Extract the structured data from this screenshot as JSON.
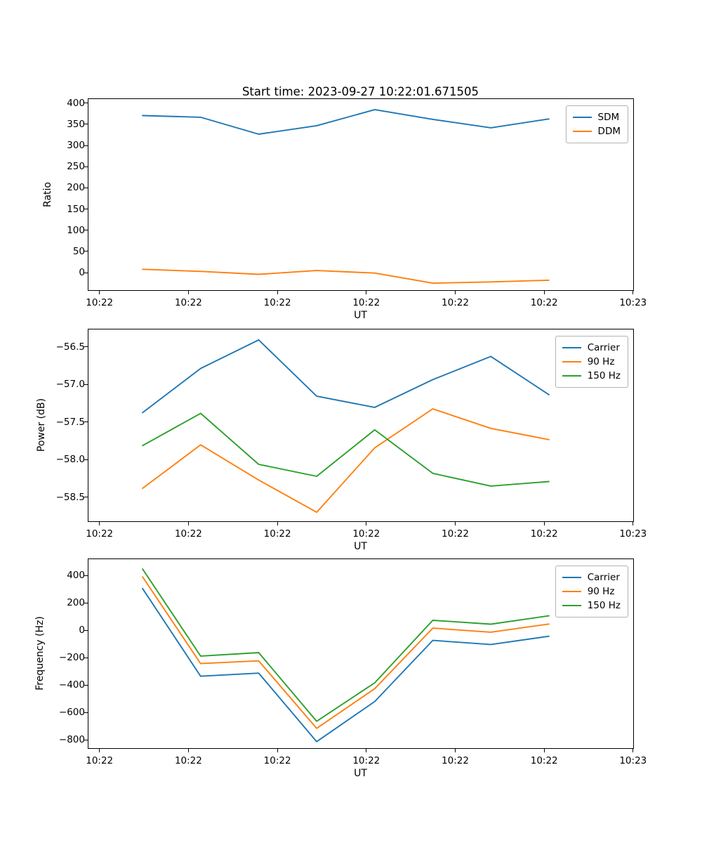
{
  "figure": {
    "title": "Start time: 2023-09-27 10:22:01.671505",
    "background": "#ffffff"
  },
  "chart_data": [
    {
      "name": "ratio",
      "type": "line",
      "xlabel": "UT",
      "ylabel": "Ratio",
      "x_tick_labels": [
        "10:22",
        "10:22",
        "10:22",
        "10:22",
        "10:22",
        "10:22",
        "10:23"
      ],
      "y_ticks": [
        {
          "value": 0,
          "label": "0"
        },
        {
          "value": 50,
          "label": "50"
        },
        {
          "value": 100,
          "label": "100"
        },
        {
          "value": 150,
          "label": "150"
        },
        {
          "value": 200,
          "label": "200"
        },
        {
          "value": 250,
          "label": "250"
        },
        {
          "value": 300,
          "label": "300"
        },
        {
          "value": 350,
          "label": "350"
        },
        {
          "value": 400,
          "label": "400"
        }
      ],
      "ylim": [
        -41.4,
        411.1
      ],
      "grid": false,
      "legend_position": "upper right",
      "series": [
        {
          "name": "SDM",
          "color": "#1f77b4",
          "values": [
            372,
            368,
            328,
            348,
            386,
            363,
            343,
            364
          ]
        },
        {
          "name": "DDM",
          "color": "#ff7f0e",
          "values": [
            8,
            3,
            -4,
            5,
            -1,
            -25,
            -22,
            -18
          ]
        }
      ]
    },
    {
      "name": "power",
      "type": "line",
      "xlabel": "UT",
      "ylabel": "Power (dB)",
      "x_tick_labels": [
        "10:22",
        "10:22",
        "10:22",
        "10:22",
        "10:22",
        "10:22",
        "10:23"
      ],
      "y_ticks": [
        {
          "value": -58.5,
          "label": "−58.5"
        },
        {
          "value": -58.0,
          "label": "−58.0"
        },
        {
          "value": -57.5,
          "label": "−57.5"
        },
        {
          "value": -57.0,
          "label": "−57.0"
        },
        {
          "value": -56.5,
          "label": "−56.5"
        }
      ],
      "ylim": [
        -58.82,
        -56.26
      ],
      "grid": false,
      "legend_position": "upper right",
      "series": [
        {
          "name": "Carrier",
          "color": "#1f77b4",
          "values": [
            -57.37,
            -56.78,
            -56.4,
            -57.15,
            -57.3,
            -56.93,
            -56.62,
            -57.13
          ]
        },
        {
          "name": "90 Hz",
          "color": "#ff7f0e",
          "values": [
            -58.38,
            -57.8,
            -58.27,
            -58.7,
            -57.84,
            -57.32,
            -57.58,
            -57.73
          ]
        },
        {
          "name": "150 Hz",
          "color": "#2ca02c",
          "values": [
            -57.81,
            -57.38,
            -58.06,
            -58.22,
            -57.6,
            -58.18,
            -58.35,
            -58.29
          ]
        }
      ]
    },
    {
      "name": "frequency",
      "type": "line",
      "xlabel": "UT",
      "ylabel": "Frequency (Hz)",
      "x_tick_labels": [
        "10:22",
        "10:22",
        "10:22",
        "10:22",
        "10:22",
        "10:22",
        "10:23"
      ],
      "y_ticks": [
        {
          "value": -800,
          "label": "−800"
        },
        {
          "value": -600,
          "label": "−600"
        },
        {
          "value": -400,
          "label": "−400"
        },
        {
          "value": -200,
          "label": "−200"
        },
        {
          "value": 0,
          "label": "0"
        },
        {
          "value": 200,
          "label": "200"
        },
        {
          "value": 400,
          "label": "400"
        }
      ],
      "ylim": [
        -860,
        525
      ],
      "grid": false,
      "legend_position": "upper right",
      "series": [
        {
          "name": "Carrier",
          "color": "#1f77b4",
          "values": [
            310,
            -333,
            -310,
            -812,
            -518,
            -70,
            -100,
            -40
          ]
        },
        {
          "name": "90 Hz",
          "color": "#ff7f0e",
          "values": [
            396,
            -240,
            -220,
            -715,
            -424,
            20,
            -10,
            50
          ]
        },
        {
          "name": "150 Hz",
          "color": "#2ca02c",
          "values": [
            453,
            -185,
            -160,
            -663,
            -381,
            77,
            49,
            110
          ]
        }
      ]
    }
  ]
}
